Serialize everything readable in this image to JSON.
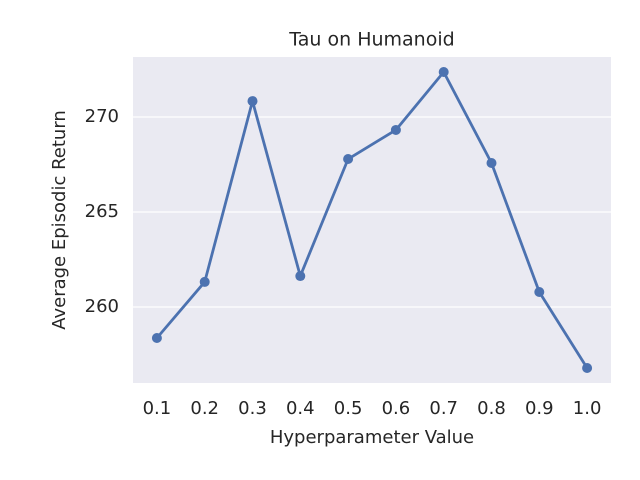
{
  "chart_data": {
    "type": "line",
    "title": "Tau on Humanoid",
    "x_label": "Hyperparameter Value",
    "y_label": "Average Episodic Return",
    "categories": [
      "0.1",
      "0.2",
      "0.3",
      "0.4",
      "0.5",
      "0.6",
      "0.7",
      "0.8",
      "0.9",
      "1.0"
    ],
    "values": [
      258.37,
      261.32,
      270.84,
      261.63,
      267.79,
      269.32,
      272.37,
      267.58,
      260.79,
      256.79
    ],
    "color": "#4c72b0",
    "ylim": [
      256.0,
      273.16
    ],
    "yticks": [
      260,
      265,
      270
    ],
    "grid": true
  }
}
